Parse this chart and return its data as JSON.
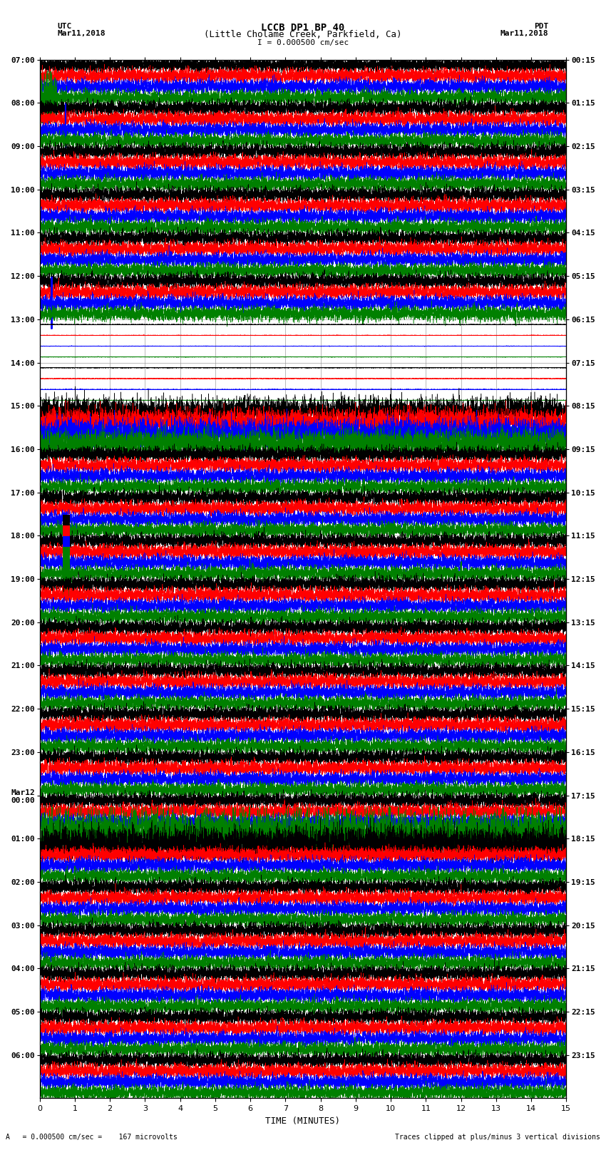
{
  "title_line1": "LCCB DP1 BP 40",
  "title_line2": "(Little Cholame Creek, Parkfield, Ca)",
  "title_line3": "I = 0.000500 cm/sec",
  "left_label": "UTC",
  "left_date": "Mar11,2018",
  "right_label": "PDT",
  "right_date": "Mar11,2018",
  "xlabel": "TIME (MINUTES)",
  "bottom_left": "A   = 0.000500 cm/sec =    167 microvolts",
  "bottom_right": "Traces clipped at plus/minus 3 vertical divisions",
  "utc_times": [
    "07:00",
    "08:00",
    "09:00",
    "10:00",
    "11:00",
    "12:00",
    "13:00",
    "14:00",
    "15:00",
    "16:00",
    "17:00",
    "18:00",
    "19:00",
    "20:00",
    "21:00",
    "22:00",
    "23:00",
    "Mar12\n00:00",
    "01:00",
    "02:00",
    "03:00",
    "04:00",
    "05:00",
    "06:00"
  ],
  "pdt_times": [
    "00:15",
    "01:15",
    "02:15",
    "03:15",
    "04:15",
    "05:15",
    "06:15",
    "07:15",
    "08:15",
    "09:15",
    "10:15",
    "11:15",
    "12:15",
    "13:15",
    "14:15",
    "15:15",
    "16:15",
    "17:15",
    "18:15",
    "19:15",
    "20:15",
    "21:15",
    "22:15",
    "23:15"
  ],
  "n_rows": 24,
  "n_minutes": 15,
  "sample_rate": 40,
  "trace_colors": [
    "black",
    "red",
    "blue",
    "green"
  ],
  "background_color": "white",
  "grid_color": "#888888",
  "title_fontsize": 9,
  "label_fontsize": 8,
  "tick_fontsize": 8
}
